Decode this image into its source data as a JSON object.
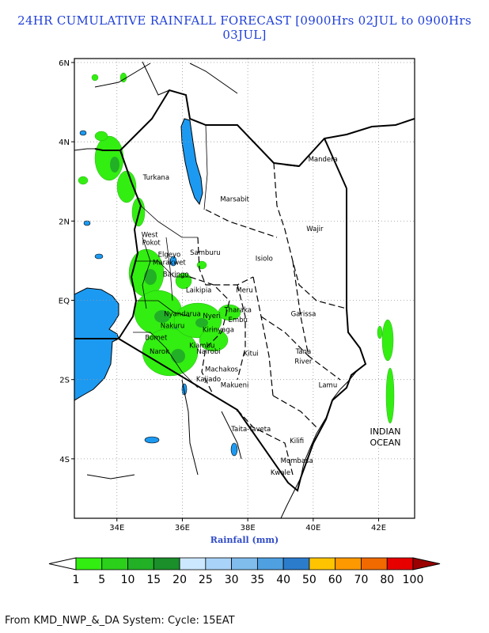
{
  "title": "24HR CUMULATIVE RAINFALL FORECAST [0900Hrs 02JUL to 0900Hrs 03JUL]",
  "xlabel": "Rainfall (mm)",
  "footer": "From KMD_NWP_&_DA System: Cycle: 15EAT",
  "ocean_label_line1": "INDIAN",
  "ocean_label_line2": "OCEAN",
  "map_extent": {
    "lon": [
      32.7,
      43.1
    ],
    "lat": [
      -5.5,
      6.1
    ]
  },
  "lat_ticks": [
    {
      "value": 6,
      "label": "6N"
    },
    {
      "value": 4,
      "label": "4N"
    },
    {
      "value": 2,
      "label": "2N"
    },
    {
      "value": 0,
      "label": "EQ"
    },
    {
      "value": -2,
      "label": "2S"
    },
    {
      "value": -4,
      "label": "4S"
    }
  ],
  "lon_ticks": [
    {
      "value": 34,
      "label": "34E"
    },
    {
      "value": 36,
      "label": "36E"
    },
    {
      "value": 38,
      "label": "38E"
    },
    {
      "value": 40,
      "label": "40E"
    },
    {
      "value": 42,
      "label": "42E"
    }
  ],
  "colorbar": {
    "boundaries": [
      1,
      5,
      10,
      15,
      20,
      25,
      30,
      35,
      40,
      50,
      60,
      70,
      80,
      100
    ],
    "colors": [
      "#33ee11",
      "#2bd01a",
      "#22b026",
      "#1a8f2a",
      "#cce8ff",
      "#a9d3f8",
      "#80bcec",
      "#4fa0e0",
      "#2c7ccc",
      "#ffc400",
      "#ff9900",
      "#f06a00",
      "#e60000"
    ],
    "under_color": "#ffffff",
    "over_color": "#9a0000"
  },
  "places": [
    {
      "name": "Mandera",
      "lon": 40.3,
      "lat": 3.5
    },
    {
      "name": "Turkana",
      "lon": 35.2,
      "lat": 3.05
    },
    {
      "name": "Marsabit",
      "lon": 37.6,
      "lat": 2.5
    },
    {
      "name": "Wajir",
      "lon": 40.05,
      "lat": 1.75
    },
    {
      "name": "West",
      "lon": 35.0,
      "lat": 1.6
    },
    {
      "name": "Pokot",
      "lon": 35.05,
      "lat": 1.4
    },
    {
      "name": "Samburu",
      "lon": 36.7,
      "lat": 1.15
    },
    {
      "name": "Elgeyo",
      "lon": 35.6,
      "lat": 1.1
    },
    {
      "name": "Marakwet",
      "lon": 35.6,
      "lat": 0.9
    },
    {
      "name": "Isiolo",
      "lon": 38.5,
      "lat": 1.0
    },
    {
      "name": "Baringo",
      "lon": 35.8,
      "lat": 0.6
    },
    {
      "name": "Laikipia",
      "lon": 36.5,
      "lat": 0.2
    },
    {
      "name": "Meru",
      "lon": 37.9,
      "lat": 0.2
    },
    {
      "name": "Nyandarua",
      "lon": 36.0,
      "lat": -0.4
    },
    {
      "name": "Nyeri",
      "lon": 36.9,
      "lat": -0.45
    },
    {
      "name": "Tharaka",
      "lon": 37.7,
      "lat": -0.3
    },
    {
      "name": "Embu",
      "lon": 37.7,
      "lat": -0.55
    },
    {
      "name": "Garissa",
      "lon": 39.7,
      "lat": -0.4
    },
    {
      "name": "Nakuru",
      "lon": 35.7,
      "lat": -0.7
    },
    {
      "name": "Kirinyaga",
      "lon": 37.1,
      "lat": -0.8
    },
    {
      "name": "Bomet",
      "lon": 35.2,
      "lat": -1.0
    },
    {
      "name": "Kiambu",
      "lon": 36.6,
      "lat": -1.2
    },
    {
      "name": "Nairobi",
      "lon": 36.8,
      "lat": -1.35
    },
    {
      "name": "Kitui",
      "lon": 38.1,
      "lat": -1.4
    },
    {
      "name": "Tana",
      "lon": 39.7,
      "lat": -1.35
    },
    {
      "name": "River",
      "lon": 39.7,
      "lat": -1.6
    },
    {
      "name": "Narok",
      "lon": 35.3,
      "lat": -1.35
    },
    {
      "name": "Machakos",
      "lon": 37.2,
      "lat": -1.8
    },
    {
      "name": "Kajiado",
      "lon": 36.8,
      "lat": -2.05
    },
    {
      "name": "Makueni",
      "lon": 37.6,
      "lat": -2.2
    },
    {
      "name": "Lamu",
      "lon": 40.45,
      "lat": -2.2
    },
    {
      "name": "Taita-Taveta",
      "lon": 38.1,
      "lat": -3.3
    },
    {
      "name": "Kilifi",
      "lon": 39.5,
      "lat": -3.6
    },
    {
      "name": "Mombasa",
      "lon": 39.5,
      "lat": -4.1
    },
    {
      "name": "Kwale",
      "lon": 39.0,
      "lat": -4.4
    }
  ]
}
